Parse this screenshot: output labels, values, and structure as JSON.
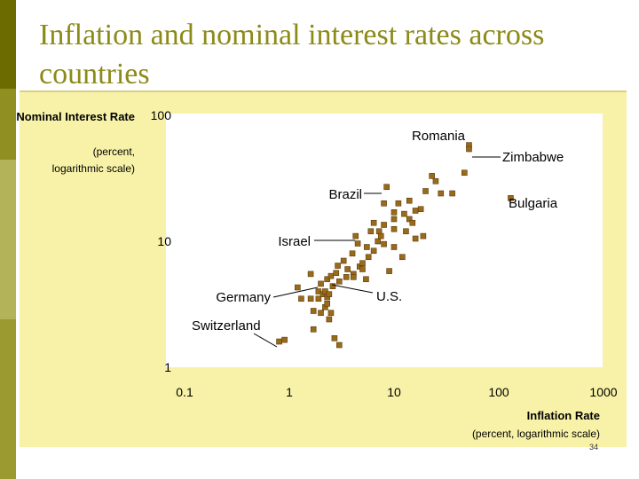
{
  "slide": {
    "title": "Inflation and nominal interest rates across countries",
    "page_number": "34"
  },
  "chart_data": {
    "type": "scatter",
    "title": "",
    "xlabel": "Inflation Rate",
    "xlabel_sub": "(percent, logarithmic scale)",
    "ylabel": "Nominal Interest Rate",
    "ylabel_sub": [
      "(percent,",
      "logarithmic scale)"
    ],
    "x_scale": "log",
    "y_scale": "log",
    "xlim": [
      0.1,
      1000
    ],
    "ylim": [
      1,
      100
    ],
    "x_ticks": [
      {
        "value": 0.1,
        "label": "0.1"
      },
      {
        "value": 1,
        "label": "1"
      },
      {
        "value": 10,
        "label": "10"
      },
      {
        "value": 100,
        "label": "100"
      },
      {
        "value": 1000,
        "label": "1000"
      }
    ],
    "y_ticks": [
      {
        "value": 1,
        "label": "1"
      },
      {
        "value": 10,
        "label": "10"
      },
      {
        "value": 100,
        "label": "100"
      }
    ],
    "grid": false,
    "marker_color": "#9a6a1c",
    "points": [
      [
        0.8,
        1.6
      ],
      [
        0.9,
        1.65
      ],
      [
        1.2,
        4.3
      ],
      [
        1.3,
        3.5
      ],
      [
        1.6,
        5.5
      ],
      [
        1.6,
        3.5
      ],
      [
        1.7,
        2.8
      ],
      [
        1.7,
        2.0
      ],
      [
        1.9,
        4.0
      ],
      [
        1.9,
        3.5
      ],
      [
        2.0,
        2.7
      ],
      [
        2.0,
        4.6
      ],
      [
        2.1,
        3.8
      ],
      [
        2.2,
        3.0
      ],
      [
        2.2,
        4.0
      ],
      [
        2.3,
        3.2
      ],
      [
        2.3,
        3.6
      ],
      [
        2.3,
        5.0
      ],
      [
        2.4,
        2.4
      ],
      [
        2.4,
        3.8
      ],
      [
        2.5,
        5.3
      ],
      [
        2.5,
        2.7
      ],
      [
        2.6,
        4.4
      ],
      [
        2.7,
        1.7
      ],
      [
        2.8,
        5.6
      ],
      [
        2.9,
        6.4
      ],
      [
        3.0,
        4.8
      ],
      [
        3.0,
        1.5
      ],
      [
        3.3,
        7.0
      ],
      [
        3.5,
        5.2
      ],
      [
        3.6,
        6.0
      ],
      [
        4.0,
        8.0
      ],
      [
        4.1,
        5.5
      ],
      [
        4.1,
        5.2
      ],
      [
        4.3,
        11.0
      ],
      [
        4.5,
        9.6
      ],
      [
        4.7,
        6.3
      ],
      [
        5.0,
        6.7
      ],
      [
        5.0,
        6.0
      ],
      [
        5.4,
        5.0
      ],
      [
        5.5,
        9.0
      ],
      [
        5.7,
        7.5
      ],
      [
        6.0,
        12.0
      ],
      [
        6.4,
        8.4
      ],
      [
        6.4,
        14.0
      ],
      [
        7.0,
        10.0
      ],
      [
        7.2,
        12.0
      ],
      [
        7.5,
        11.0
      ],
      [
        8.0,
        9.5
      ],
      [
        8.0,
        13.5
      ],
      [
        8.0,
        20.0
      ],
      [
        8.5,
        27.0
      ],
      [
        9.0,
        5.8
      ],
      [
        10.0,
        15.0
      ],
      [
        10.0,
        9.0
      ],
      [
        10.0,
        17.0
      ],
      [
        10.0,
        12.5
      ],
      [
        11.0,
        20.0
      ],
      [
        12.0,
        7.5
      ],
      [
        12.5,
        16.5
      ],
      [
        13.0,
        12.0
      ],
      [
        14.0,
        15.0
      ],
      [
        14.0,
        21.0
      ],
      [
        15.0,
        14.0
      ],
      [
        16.0,
        17.5
      ],
      [
        16.0,
        10.5
      ],
      [
        18.0,
        18.0
      ],
      [
        19.0,
        11.0
      ],
      [
        20.0,
        25.0
      ],
      [
        23.0,
        33.0
      ],
      [
        25.0,
        30.0
      ],
      [
        28.0,
        24.0
      ],
      [
        36.0,
        24.0
      ],
      [
        47.0,
        35.0
      ],
      [
        52.0,
        58.0
      ],
      [
        52.0,
        54.0
      ],
      [
        130.0,
        22.0
      ]
    ],
    "annotations": [
      {
        "label": "Romania",
        "x": 45,
        "y": 52
      },
      {
        "label": "Zimbabwe",
        "x": 52,
        "y": 43
      },
      {
        "label": "Brazil",
        "x": 7.2,
        "y": 21.5
      },
      {
        "label": "Bulgaria",
        "x": 130,
        "y": 19.5
      },
      {
        "label": "Israel",
        "x": 5.8,
        "y": 10
      },
      {
        "label": "U.S.",
        "x": 2.6,
        "y": 3.1
      },
      {
        "label": "Germany",
        "x": 1.4,
        "y": 3.0
      },
      {
        "label": "Switzerland",
        "x": 0.9,
        "y": 1.6
      }
    ]
  }
}
